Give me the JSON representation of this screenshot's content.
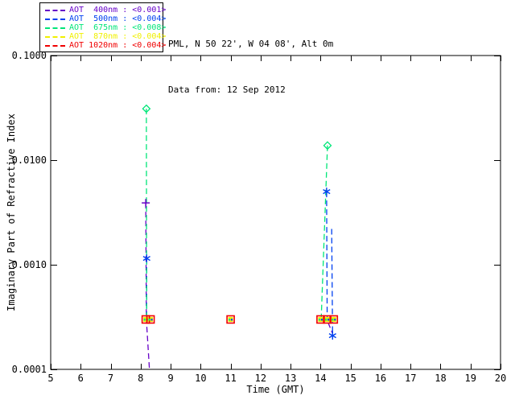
{
  "header": {
    "line1": "PML, N 50 22', W 04 08', Alt 0m",
    "line2": "Data from: 12 Sep 2012"
  },
  "legend": {
    "items": [
      {
        "label": "AOT  400nm : <0.001>",
        "color": "#6600c8"
      },
      {
        "label": "AOT  500nm : <0.004>",
        "color": "#0040f0"
      },
      {
        "label": "AOT  675nm : <0.008>",
        "color": "#00e678"
      },
      {
        "label": "AOT  870nm : <0.004>",
        "color": "#f0f000"
      },
      {
        "label": "AOT 1020nm : <0.004>",
        "color": "#f00000"
      }
    ]
  },
  "chart_data": {
    "type": "line",
    "title": "",
    "xlabel": "Time (GMT)",
    "ylabel": "Imaginary Part of Refractive Index",
    "xlim": [
      5,
      20
    ],
    "ylim": [
      0.0001,
      0.1
    ],
    "y_scale": "log",
    "grid": false,
    "x_ticks": [
      5,
      6,
      7,
      8,
      9,
      10,
      11,
      12,
      13,
      14,
      15,
      16,
      17,
      18,
      19,
      20
    ],
    "y_ticks": [
      {
        "value": 0.1,
        "label": "0.1000"
      },
      {
        "value": 0.01,
        "label": "0.0100"
      },
      {
        "value": 0.001,
        "label": "0.0010"
      },
      {
        "value": 0.0001,
        "label": "0.0001"
      }
    ],
    "inner_dot_colors": [
      "#00e678",
      "#0040f0"
    ],
    "series": [
      {
        "name": "AOT 400nm",
        "wavelength_nm": 400,
        "aot_value": "<0.001>",
        "color": "#6600c8",
        "marker": "plus",
        "points": [
          [
            8.17,
            0.0039
          ]
        ],
        "lines": [
          [
            [
              8.17,
              0.0039
            ],
            [
              8.19,
              0.0003
            ],
            [
              8.29,
              0.000103
            ]
          ],
          [
            [
              14.25,
              0.00028
            ],
            [
              14.4,
              0.00022
            ]
          ]
        ]
      },
      {
        "name": "AOT 500nm",
        "wavelength_nm": 500,
        "aot_value": "<0.004>",
        "color": "#0040f0",
        "marker": "asterisk",
        "points": [
          [
            8.2,
            0.00115
          ],
          [
            14.2,
            0.005
          ],
          [
            14.4,
            0.00021
          ]
        ],
        "lines": [
          [
            [
              8.2,
              0.00115
            ],
            [
              8.2,
              0.0003
            ]
          ],
          [
            [
              14.2,
              0.005
            ],
            [
              14.22,
              0.0003
            ]
          ],
          [
            [
              14.37,
              0.0022
            ],
            [
              14.4,
              0.00021
            ]
          ]
        ]
      },
      {
        "name": "AOT 675nm",
        "wavelength_nm": 675,
        "aot_value": "<0.008>",
        "color": "#00e678",
        "marker": "diamond",
        "points": [
          [
            8.19,
            0.031
          ],
          [
            14.23,
            0.0138
          ]
        ],
        "lines": [
          [
            [
              8.19,
              0.031
            ],
            [
              8.2,
              0.0003
            ]
          ],
          [
            [
              14.23,
              0.0138
            ],
            [
              14.02,
              0.0003
            ]
          ]
        ]
      },
      {
        "name": "AOT 870nm",
        "wavelength_nm": 870,
        "aot_value": "<0.004>",
        "color": "#f0f000",
        "marker": "square-filled",
        "points": [
          [
            8.17,
            0.0003
          ],
          [
            8.33,
            0.0003
          ],
          [
            11.0,
            0.0003
          ],
          [
            14.0,
            0.0003
          ],
          [
            14.22,
            0.0003
          ],
          [
            14.44,
            0.0003
          ]
        ],
        "lines": []
      },
      {
        "name": "AOT 1020nm",
        "wavelength_nm": 1020,
        "aot_value": "<0.004>",
        "color": "#f00000",
        "marker": "square-open",
        "points": [
          [
            8.17,
            0.0003
          ],
          [
            8.33,
            0.0003
          ],
          [
            11.0,
            0.0003
          ],
          [
            14.0,
            0.0003
          ],
          [
            14.22,
            0.0003
          ],
          [
            14.44,
            0.0003
          ]
        ],
        "lines": []
      }
    ]
  }
}
